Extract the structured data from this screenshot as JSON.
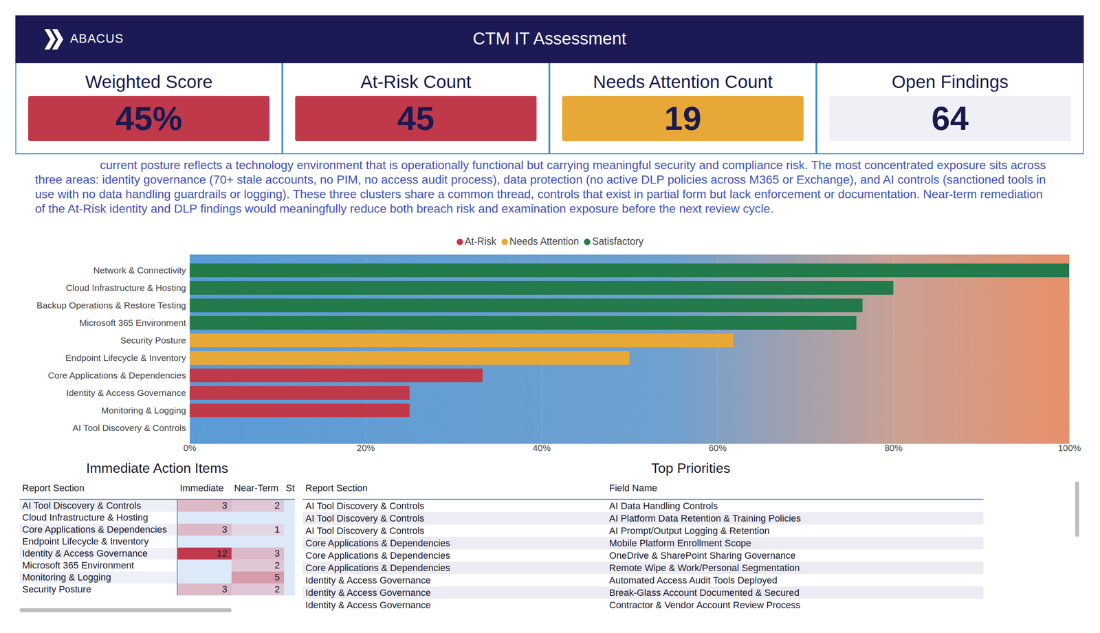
{
  "header": {
    "logo": "ABACUS",
    "title": "CTM IT Assessment"
  },
  "kpis": [
    {
      "title": "Weighted Score",
      "value": "45%",
      "color": "#c0394b"
    },
    {
      "title": "At-Risk Count",
      "value": "45",
      "color": "#c0394b"
    },
    {
      "title": "Needs Attention Count",
      "value": "19",
      "color": "#e8a838"
    },
    {
      "title": "Open Findings",
      "value": "64",
      "color": "#eef0f5"
    }
  ],
  "summary": "current posture reflects a technology environment that is operationally functional but carrying meaningful security and compliance risk. The most concentrated exposure sits across three areas: identity governance (70+ stale accounts, no PIM, no access audit process), data protection (no active DLP policies across M365 or Exchange), and AI controls (sanctioned tools in use with no data handling guardrails or logging). These three clusters share a common thread, controls that exist in partial form but lack enforcement or documentation. Near-term remediation of the At-Risk identity and DLP findings would meaningfully reduce both breach risk and examination exposure before the next review cycle.",
  "chart_data": {
    "type": "bar",
    "orientation": "horizontal",
    "categories": [
      "Network & Connectivity",
      "Cloud Infrastructure & Hosting",
      "Backup Operations & Restore Testing",
      "Microsoft 365 Environment",
      "Security Posture",
      "Endpoint Lifecycle & Inventory",
      "Core Applications & Dependencies",
      "Identity & Access Governance",
      "Monitoring & Logging",
      "AI Tool Discovery & Controls"
    ],
    "series": [
      {
        "name": "At-Risk",
        "color": "#c0394b",
        "values": [
          null,
          null,
          null,
          null,
          null,
          null,
          33.3,
          25,
          25,
          0
        ]
      },
      {
        "name": "Needs Attention",
        "color": "#e8a838",
        "values": [
          null,
          null,
          null,
          null,
          61.8,
          50,
          null,
          null,
          null,
          null
        ]
      },
      {
        "name": "Satisfactory",
        "color": "#237a4b",
        "values": [
          100,
          80,
          76.5,
          75.8,
          null,
          null,
          null,
          null,
          null,
          null
        ]
      }
    ],
    "xlim": [
      0,
      100
    ],
    "xticks": [
      {
        "value": 0,
        "label": "0%"
      },
      {
        "value": 20,
        "label": "20%"
      },
      {
        "value": 40,
        "label": "40%"
      },
      {
        "value": 60,
        "label": "60%"
      },
      {
        "value": 80,
        "label": "80%"
      },
      {
        "value": 100,
        "label": "100%"
      }
    ],
    "grid": true,
    "legend": "top"
  },
  "immediate_actions": {
    "title": "Immediate Action Items",
    "columns": [
      "Report Section",
      "Immediate",
      "Near-Term",
      "St"
    ],
    "rows": [
      [
        "AI Tool Discovery & Controls",
        3,
        2,
        null
      ],
      [
        "Cloud Infrastructure & Hosting",
        null,
        null,
        null
      ],
      [
        "Core Applications & Dependencies",
        3,
        1,
        null
      ],
      [
        "Endpoint Lifecycle & Inventory",
        null,
        null,
        null
      ],
      [
        "Identity & Access Governance",
        12,
        3,
        null
      ],
      [
        "Microsoft 365 Environment",
        null,
        2,
        null
      ],
      [
        "Monitoring & Logging",
        null,
        5,
        null
      ],
      [
        "Security Posture",
        3,
        2,
        null
      ]
    ]
  },
  "top_priorities": {
    "title": "Top Priorities",
    "columns": [
      "Report Section",
      "Field Name"
    ],
    "rows": [
      [
        "AI Tool Discovery & Controls",
        "AI Data Handling Controls"
      ],
      [
        "AI Tool Discovery & Controls",
        "AI Platform Data Retention & Training Policies"
      ],
      [
        "AI Tool Discovery & Controls",
        "AI Prompt/Output Logging & Retention"
      ],
      [
        "Core Applications & Dependencies",
        "Mobile Platform Enrollment Scope"
      ],
      [
        "Core Applications & Dependencies",
        "OneDrive & SharePoint Sharing Governance"
      ],
      [
        "Core Applications & Dependencies",
        "Remote Wipe & Work/Personal Segmentation"
      ],
      [
        "Identity & Access Governance",
        "Automated Access Audit Tools Deployed"
      ],
      [
        "Identity & Access Governance",
        "Break-Glass Account Documented & Secured"
      ],
      [
        "Identity & Access Governance",
        "Contractor & Vendor Account Review Process"
      ]
    ]
  }
}
